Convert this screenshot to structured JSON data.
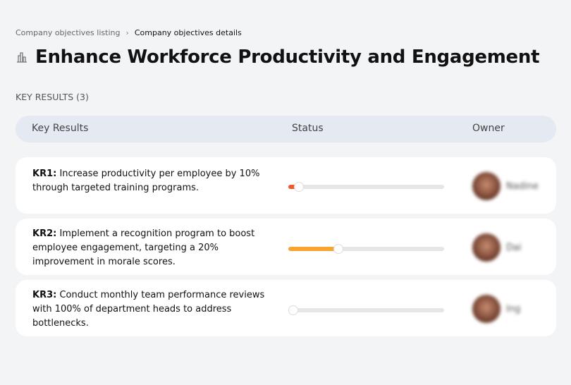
{
  "breadcrumb": {
    "parent": "Company objectives listing",
    "separator": "›",
    "current": "Company objectives details"
  },
  "page": {
    "title": "Enhance Workforce Productivity and Engagement",
    "icon": "buildings-icon",
    "section": "KEY RESULTS (3)"
  },
  "table": {
    "headers": {
      "key_results": "Key Results",
      "status": "Status",
      "owner": "Owner"
    },
    "rows": [
      {
        "id": "KR1:",
        "text": " Increase productivity per employee by 10% through targeted training programs.",
        "progress": 7,
        "color": "#f05a2a",
        "owner": "Nadine"
      },
      {
        "id": "KR2:",
        "text": " Implement a recognition program to boost employee engagement, targeting a 20% improvement in morale scores.",
        "progress": 32,
        "color": "#f8a530",
        "owner": "Dai"
      },
      {
        "id": "KR3:",
        "text": " Conduct monthly team performance reviews with 100% of department heads to address bottlenecks.",
        "progress": 3,
        "color": "#f05a2a",
        "owner": "Ing"
      }
    ]
  }
}
